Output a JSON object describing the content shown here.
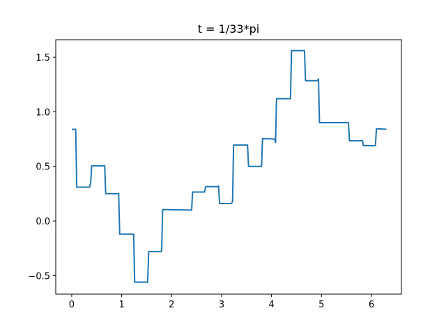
{
  "chart_data": {
    "type": "line",
    "title": "t = 1/33*pi",
    "xlabel": "",
    "ylabel": "",
    "xlim": [
      -0.32,
      6.6
    ],
    "ylim": [
      -0.67,
      1.66
    ],
    "grid": false,
    "colors": {
      "series": "#1f77b4",
      "axes": "#000000",
      "background": "#ffffff"
    },
    "xticks": [
      {
        "value": 0,
        "label": "0"
      },
      {
        "value": 1,
        "label": "1"
      },
      {
        "value": 2,
        "label": "2"
      },
      {
        "value": 3,
        "label": "3"
      },
      {
        "value": 4,
        "label": "4"
      },
      {
        "value": 5,
        "label": "5"
      },
      {
        "value": 6,
        "label": "6"
      }
    ],
    "yticks": [
      {
        "value": -0.5,
        "label": "−0.5"
      },
      {
        "value": 0.0,
        "label": "0.0"
      },
      {
        "value": 0.5,
        "label": "0.5"
      },
      {
        "value": 1.0,
        "label": "1.0"
      },
      {
        "value": 1.5,
        "label": "1.5"
      }
    ],
    "series": [
      {
        "x": [
          0.0,
          0.08,
          0.1,
          0.12,
          0.36,
          0.38,
          0.4,
          0.64,
          0.66,
          0.68,
          0.92,
          0.94,
          0.96,
          1.22,
          1.24,
          1.26,
          1.5,
          1.52,
          1.54,
          1.78,
          1.8,
          1.82,
          2.38,
          2.4,
          2.42,
          2.64,
          2.66,
          2.68,
          2.92,
          2.94,
          2.96,
          3.2,
          3.22,
          3.24,
          3.5,
          3.52,
          3.54,
          3.78,
          3.8,
          3.82,
          4.06,
          4.08,
          4.1,
          4.36,
          4.38,
          4.4,
          4.64,
          4.66,
          4.68,
          4.92,
          4.94,
          4.96,
          5.52,
          5.54,
          5.56,
          5.8,
          5.82,
          5.84,
          6.06,
          6.08,
          6.1,
          6.3
        ],
        "y": [
          0.84,
          0.84,
          0.31,
          0.31,
          0.31,
          0.35,
          0.505,
          0.505,
          0.505,
          0.25,
          0.25,
          0.25,
          -0.12,
          -0.12,
          -0.12,
          -0.56,
          -0.56,
          -0.56,
          -0.28,
          -0.28,
          -0.28,
          0.105,
          0.1,
          0.1,
          0.265,
          0.265,
          0.265,
          0.315,
          0.315,
          0.32,
          0.16,
          0.16,
          0.18,
          0.695,
          0.695,
          0.695,
          0.5,
          0.5,
          0.5,
          0.755,
          0.75,
          0.72,
          1.12,
          1.12,
          1.12,
          1.56,
          1.56,
          1.56,
          1.285,
          1.285,
          1.3,
          0.9,
          0.9,
          0.9,
          0.735,
          0.735,
          0.735,
          0.69,
          0.69,
          0.69,
          0.845,
          0.84
        ]
      }
    ]
  }
}
